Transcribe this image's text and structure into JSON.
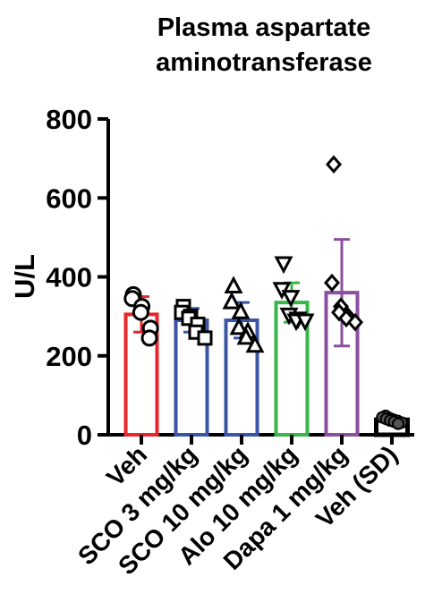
{
  "chart_data": {
    "type": "bar",
    "title_lines": [
      "Plasma aspartate",
      "aminotransferase"
    ],
    "ylabel": "U/L",
    "xlabel": "",
    "ylim": [
      0,
      800
    ],
    "yticks": [
      0,
      200,
      400,
      600,
      800
    ],
    "categories": [
      "Veh",
      "SCO 3 mg/kg",
      "SCO 10 mg/kg",
      "Alo 10 mg/kg",
      "Dapa 1 mg/kg",
      "Veh (SD)"
    ],
    "colors": [
      "#e8262c",
      "#3a55a5",
      "#3a55a5",
      "#3ab54a",
      "#8a4f9e",
      "#000000"
    ],
    "markers": [
      "circle",
      "square",
      "triangle-up",
      "triangle-down",
      "diamond",
      "circle-filled"
    ],
    "means": [
      305,
      290,
      290,
      335,
      360,
      38
    ],
    "errors": [
      45,
      30,
      45,
      50,
      135,
      8
    ],
    "points": [
      [
        355,
        345,
        325,
        310,
        270,
        245
      ],
      [
        325,
        310,
        300,
        295,
        280,
        260,
        245
      ],
      [
        375,
        335,
        310,
        270,
        260,
        245,
        225
      ],
      [
        435,
        370,
        350,
        305,
        295,
        290,
        290
      ],
      [
        685,
        385,
        325,
        310,
        300,
        295,
        285
      ],
      [
        48,
        44,
        42,
        40,
        38,
        36,
        35,
        33,
        31,
        28
      ]
    ],
    "grid": false,
    "legend": "none"
  }
}
